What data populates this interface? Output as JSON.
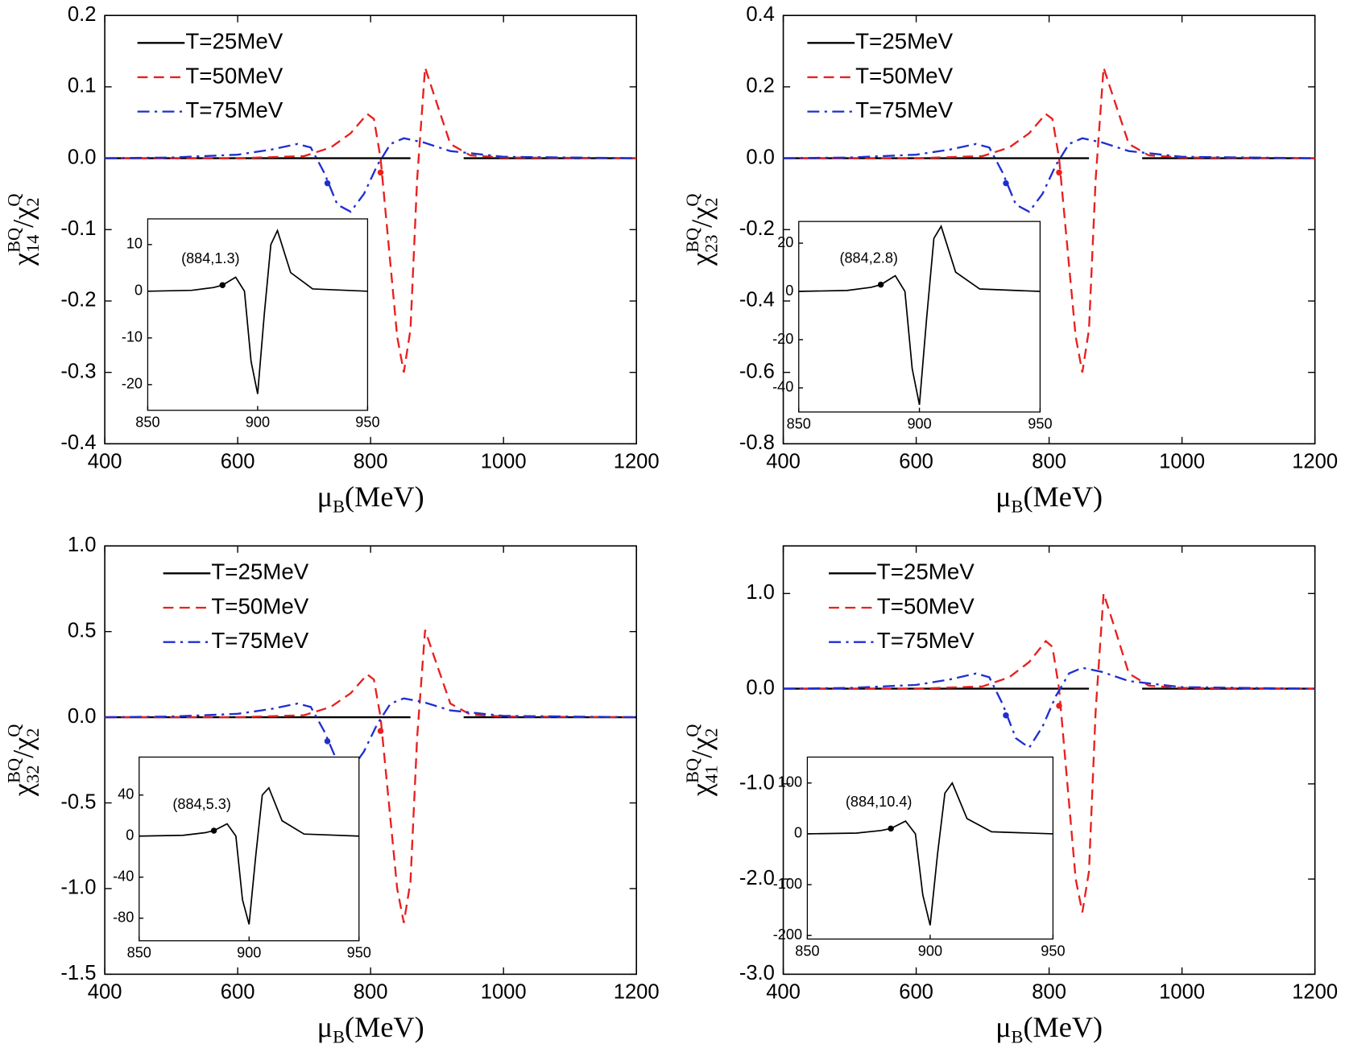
{
  "chart_data": [
    {
      "type": "line",
      "ylabel": {
        "numerator": {
          "symbol": "χ",
          "sup": "BQ",
          "sub": "14"
        },
        "slash": "/",
        "denominator": {
          "symbol": "χ",
          "sup": "Q",
          "sub": "2"
        }
      },
      "xlabel": {
        "symbol": "μ",
        "sub": "B",
        "rest": "(MeV)"
      },
      "xlim": [
        400,
        1200
      ],
      "xticks": [
        400,
        600,
        800,
        1000,
        1200
      ],
      "ylim": [
        -0.4,
        0.2
      ],
      "yticks": [
        -0.4,
        -0.3,
        -0.2,
        -0.1,
        {
          "value": 0,
          "label": "0.0"
        },
        0.1,
        0.2
      ],
      "legend": "upper left",
      "series": [
        {
          "name": "T=25MeV",
          "color": "#000000",
          "dash": "solid",
          "x": [
            400,
            860,
            900,
            940,
            1200
          ],
          "values": [
            0,
            0,
            null,
            0,
            0
          ]
        },
        {
          "name": "T=50MeV",
          "color": "#e8201f",
          "dash": "dash",
          "x": [
            400,
            600,
            700,
            740,
            770,
            795,
            805,
            815,
            825,
            840,
            850,
            860,
            870,
            882,
            895,
            920,
            950,
            1000,
            1200
          ],
          "values": [
            0,
            0,
            0.003,
            0.015,
            0.035,
            0.062,
            0.055,
            0,
            -0.1,
            -0.25,
            -0.3,
            -0.24,
            -0.03,
            0.127,
            0.09,
            0.02,
            0.004,
            0.001,
            0
          ]
        },
        {
          "name": "T=75MeV",
          "color": "#1f2fd0",
          "dash": "dashdot",
          "x": [
            400,
            500,
            600,
            650,
            690,
            710,
            730,
            750,
            770,
            790,
            810,
            830,
            850,
            880,
            920,
            1000,
            1200
          ],
          "values": [
            0,
            0.001,
            0.005,
            0.012,
            0.02,
            0.015,
            -0.02,
            -0.065,
            -0.075,
            -0.05,
            -0.01,
            0.02,
            0.028,
            0.022,
            0.01,
            0.002,
            0
          ]
        }
      ],
      "points": [
        {
          "x": 815,
          "y": -0.02,
          "color": "#e8201f"
        },
        {
          "x": 735,
          "y": -0.035,
          "color": "#1f2fd0"
        }
      ],
      "inset": {
        "type": "line",
        "xlim": [
          850,
          950
        ],
        "xticks": [
          850,
          900,
          950
        ],
        "ylim": [
          -25.5,
          15.5
        ],
        "yticks": [
          -20,
          -10,
          0,
          10
        ],
        "series": [
          {
            "color": "#000000",
            "dash": "solid",
            "x": [
              850,
              870,
              880,
              884,
              890,
              894,
              897,
              900,
              903,
              906,
              909,
              915,
              925,
              950
            ],
            "values": [
              0,
              0.2,
              0.8,
              1.3,
              3,
              0,
              -15,
              -22,
              -5,
              10,
              13,
              4,
              0.5,
              0
            ]
          }
        ],
        "points": [
          {
            "x": 884,
            "y": 1.3,
            "color": "#000000"
          }
        ],
        "annotation": "(884,1.3)"
      }
    },
    {
      "type": "line",
      "ylabel": {
        "numerator": {
          "symbol": "χ",
          "sup": "BQ",
          "sub": "23"
        },
        "slash": "/",
        "denominator": {
          "symbol": "χ",
          "sup": "Q",
          "sub": "2"
        }
      },
      "xlabel": {
        "symbol": "μ",
        "sub": "B",
        "rest": "(MeV)"
      },
      "xlim": [
        400,
        1200
      ],
      "xticks": [
        400,
        600,
        800,
        1000,
        1200
      ],
      "ylim": [
        -0.8,
        0.4
      ],
      "yticks": [
        -0.8,
        -0.6,
        -0.4,
        -0.2,
        {
          "value": 0,
          "label": "0.0"
        },
        0.2,
        0.4
      ],
      "legend": "upper left",
      "series": [
        {
          "name": "T=25MeV",
          "color": "#000000",
          "dash": "solid",
          "x": [
            400,
            860,
            900,
            940,
            1200
          ],
          "values": [
            0,
            0,
            null,
            0,
            0
          ]
        },
        {
          "name": "T=50MeV",
          "color": "#e8201f",
          "dash": "dash",
          "x": [
            400,
            600,
            700,
            740,
            770,
            795,
            805,
            815,
            825,
            840,
            850,
            860,
            870,
            882,
            895,
            920,
            950,
            1000,
            1200
          ],
          "values": [
            0,
            0,
            0.006,
            0.03,
            0.07,
            0.124,
            0.11,
            0,
            -0.2,
            -0.5,
            -0.6,
            -0.48,
            -0.06,
            0.254,
            0.18,
            0.04,
            0.008,
            0.002,
            0
          ]
        },
        {
          "name": "T=75MeV",
          "color": "#1f2fd0",
          "dash": "dashdot",
          "x": [
            400,
            500,
            600,
            650,
            690,
            710,
            730,
            750,
            770,
            790,
            810,
            830,
            850,
            880,
            920,
            1000,
            1200
          ],
          "values": [
            0,
            0.002,
            0.01,
            0.024,
            0.04,
            0.03,
            -0.04,
            -0.13,
            -0.15,
            -0.1,
            -0.02,
            0.04,
            0.056,
            0.044,
            0.02,
            0.004,
            0
          ]
        }
      ],
      "points": [
        {
          "x": 815,
          "y": -0.04,
          "color": "#e8201f"
        },
        {
          "x": 735,
          "y": -0.07,
          "color": "#1f2fd0"
        }
      ],
      "inset": {
        "type": "line",
        "xlim": [
          850,
          950
        ],
        "xticks": [
          850,
          900,
          950
        ],
        "ylim": [
          -50,
          29
        ],
        "yticks": [
          -40,
          -20,
          0,
          20
        ],
        "series": [
          {
            "color": "#000000",
            "dash": "solid",
            "x": [
              850,
              870,
              880,
              884,
              890,
              894,
              897,
              900,
              903,
              906,
              909,
              915,
              925,
              950
            ],
            "values": [
              0,
              0.4,
              1.7,
              2.8,
              6.5,
              0,
              -32,
              -47,
              -11,
              22,
              27,
              8,
              1,
              0
            ]
          }
        ],
        "points": [
          {
            "x": 884,
            "y": 2.8,
            "color": "#000000"
          }
        ],
        "annotation": "(884,2.8)"
      }
    },
    {
      "type": "line",
      "ylabel": {
        "numerator": {
          "symbol": "χ",
          "sup": "BQ",
          "sub": "32"
        },
        "slash": "/",
        "denominator": {
          "symbol": "χ",
          "sup": "Q",
          "sub": "2"
        }
      },
      "xlabel": {
        "symbol": "μ",
        "sub": "B",
        "rest": "(MeV)"
      },
      "xlim": [
        400,
        1200
      ],
      "xticks": [
        400,
        600,
        800,
        1000,
        1200
      ],
      "ylim": [
        -1.5,
        1
      ],
      "yticks": [
        -1.5,
        {
          "value": -1,
          "label": "-1.0"
        },
        -0.5,
        {
          "value": 0,
          "label": "0.0"
        },
        0.5,
        {
          "value": 1,
          "label": "1.0"
        }
      ],
      "legend": "upper left",
      "series": [
        {
          "name": "T=25MeV",
          "color": "#000000",
          "dash": "solid",
          "x": [
            400,
            860,
            900,
            940,
            1200
          ],
          "values": [
            0,
            0,
            null,
            0,
            0
          ]
        },
        {
          "name": "T=50MeV",
          "color": "#e8201f",
          "dash": "dash",
          "x": [
            400,
            600,
            700,
            740,
            770,
            795,
            805,
            815,
            825,
            840,
            850,
            860,
            870,
            882,
            895,
            920,
            950,
            1000,
            1200
          ],
          "values": [
            0,
            0,
            0.012,
            0.06,
            0.14,
            0.25,
            0.22,
            0,
            -0.4,
            -1,
            -1.2,
            -0.96,
            -0.12,
            0.51,
            0.36,
            0.08,
            0.016,
            0.004,
            0
          ]
        },
        {
          "name": "T=75MeV",
          "color": "#1f2fd0",
          "dash": "dashdot",
          "x": [
            400,
            500,
            600,
            650,
            690,
            710,
            730,
            750,
            770,
            790,
            810,
            830,
            850,
            880,
            920,
            1000,
            1200
          ],
          "values": [
            0,
            0.004,
            0.02,
            0.048,
            0.08,
            0.06,
            -0.08,
            -0.26,
            -0.31,
            -0.2,
            -0.04,
            0.08,
            0.11,
            0.088,
            0.04,
            0.008,
            0
          ]
        }
      ],
      "points": [
        {
          "x": 815,
          "y": -0.08,
          "color": "#e8201f"
        },
        {
          "x": 735,
          "y": -0.14,
          "color": "#1f2fd0"
        }
      ],
      "inset": {
        "type": "line",
        "xlim": [
          850,
          950
        ],
        "xticks": [
          850,
          900,
          950
        ],
        "ylim": [
          -102,
          77
        ],
        "yticks": [
          -80,
          -40,
          0,
          40
        ],
        "series": [
          {
            "color": "#000000",
            "dash": "solid",
            "x": [
              850,
              870,
              880,
              884,
              890,
              894,
              897,
              900,
              903,
              906,
              909,
              915,
              925,
              950
            ],
            "values": [
              0,
              0.8,
              3.3,
              5.3,
              12,
              0,
              -62,
              -86,
              -20,
              40,
              47,
              15,
              2,
              0
            ]
          }
        ],
        "points": [
          {
            "x": 884,
            "y": 5.3,
            "color": "#000000"
          }
        ],
        "annotation": "(884,5.3)"
      }
    },
    {
      "type": "line",
      "ylabel": {
        "numerator": {
          "symbol": "χ",
          "sup": "BQ",
          "sub": "41"
        },
        "slash": "/",
        "denominator": {
          "symbol": "χ",
          "sup": "Q",
          "sub": "2"
        }
      },
      "xlabel": {
        "symbol": "μ",
        "sub": "B",
        "rest": "(MeV)"
      },
      "xlim": [
        400,
        1200
      ],
      "xticks": [
        400,
        600,
        800,
        1000,
        1200
      ],
      "ylim": [
        -3,
        1.5
      ],
      "yticks": [
        {
          "value": -3,
          "label": "-3.0"
        },
        {
          "value": -2,
          "label": "-2.0"
        },
        {
          "value": -1,
          "label": "-1.0"
        },
        {
          "value": 0,
          "label": "0.0"
        },
        {
          "value": 1,
          "label": "1.0"
        }
      ],
      "legend": "upper left",
      "series": [
        {
          "name": "T=25MeV",
          "color": "#000000",
          "dash": "solid",
          "x": [
            400,
            860,
            900,
            940,
            1200
          ],
          "values": [
            0,
            0,
            null,
            0,
            0
          ]
        },
        {
          "name": "T=50MeV",
          "color": "#e8201f",
          "dash": "dash",
          "x": [
            400,
            600,
            700,
            740,
            770,
            795,
            805,
            815,
            825,
            840,
            850,
            860,
            870,
            882,
            895,
            920,
            950,
            1000,
            1200
          ],
          "values": [
            0,
            0,
            0.024,
            0.12,
            0.28,
            0.5,
            0.44,
            0,
            -0.8,
            -2,
            -2.35,
            -1.92,
            -0.24,
            1,
            0.72,
            0.16,
            0.032,
            0.008,
            0
          ]
        },
        {
          "name": "T=75MeV",
          "color": "#1f2fd0",
          "dash": "dashdot",
          "x": [
            400,
            500,
            600,
            650,
            690,
            710,
            730,
            750,
            770,
            790,
            810,
            830,
            850,
            880,
            920,
            1000,
            1200
          ],
          "values": [
            0,
            0.008,
            0.04,
            0.096,
            0.16,
            0.12,
            -0.16,
            -0.52,
            -0.62,
            -0.4,
            -0.08,
            0.16,
            0.22,
            0.176,
            0.08,
            0.016,
            0
          ]
        }
      ],
      "points": [
        {
          "x": 815,
          "y": -0.18,
          "color": "#e8201f"
        },
        {
          "x": 735,
          "y": -0.28,
          "color": "#1f2fd0"
        }
      ],
      "inset": {
        "type": "line",
        "xlim": [
          850,
          950
        ],
        "xticks": [
          850,
          900,
          950
        ],
        "ylim": [
          -207,
          151
        ],
        "yticks": [
          -200,
          -100,
          0,
          100
        ],
        "series": [
          {
            "color": "#000000",
            "dash": "solid",
            "x": [
              850,
              870,
              880,
              884,
              890,
              894,
              897,
              900,
              903,
              906,
              909,
              915,
              925,
              950
            ],
            "values": [
              0,
              1.5,
              6.5,
              10.4,
              25,
              0,
              -120,
              -180,
              -40,
              80,
              100,
              30,
              4,
              0
            ]
          }
        ],
        "points": [
          {
            "x": 884,
            "y": 10.4,
            "color": "#000000"
          }
        ],
        "annotation": "(884,10.4)"
      }
    }
  ]
}
